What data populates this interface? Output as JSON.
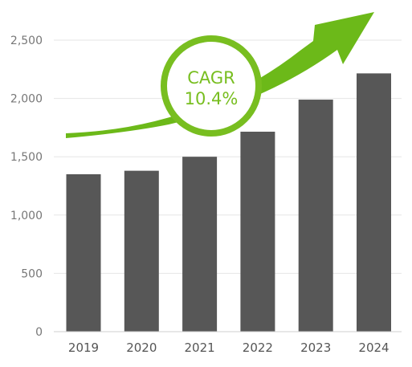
{
  "chart_data": {
    "type": "bar",
    "categories": [
      "2019",
      "2020",
      "2021",
      "2022",
      "2023",
      "2024"
    ],
    "values": [
      1350,
      1380,
      1500,
      1715,
      1990,
      2215
    ],
    "ylim": [
      0,
      2500
    ],
    "yticks": [
      0,
      500,
      1000,
      1500,
      2000,
      2500
    ],
    "ytick_labels": [
      "0",
      "500",
      "1,000",
      "1,500",
      "2,000",
      "2,500"
    ],
    "grid": true,
    "legend": "none",
    "bar_color": "#575757",
    "accent_color": "#78be20",
    "annotation": {
      "label": "CAGR",
      "value": "10.4%",
      "shape": "growth-arrow-with-circle"
    }
  }
}
